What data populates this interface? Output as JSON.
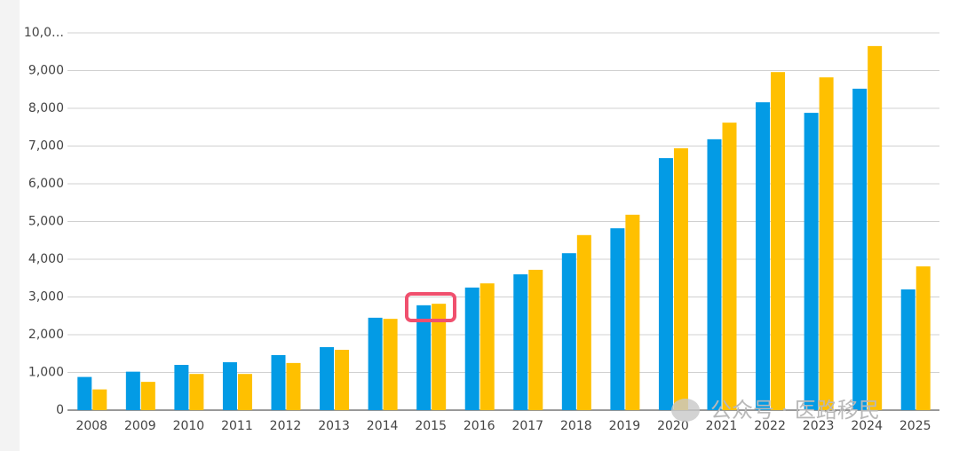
{
  "chart_data": {
    "type": "bar",
    "categories": [
      "2008",
      "2009",
      "2010",
      "2011",
      "2012",
      "2013",
      "2014",
      "2015",
      "2016",
      "2017",
      "2018",
      "2019",
      "2020",
      "2021",
      "2022",
      "2023",
      "2024",
      "2025"
    ],
    "series": [
      {
        "color": "#039be5",
        "values": [
          880,
          1020,
          1200,
          1270,
          1460,
          1670,
          2450,
          2780,
          3250,
          3600,
          4160,
          4820,
          6680,
          7180,
          8160,
          7880,
          8520,
          3200
        ]
      },
      {
        "color": "#ffc000",
        "values": [
          550,
          750,
          960,
          960,
          1250,
          1600,
          2420,
          2820,
          3360,
          3720,
          4640,
          5180,
          6940,
          7620,
          8960,
          8820,
          9650,
          3810
        ]
      }
    ],
    "ylim": [
      0,
      10000
    ],
    "yticks": [
      0,
      {
        "value": 1000,
        "label": "1,000"
      },
      {
        "value": 2000,
        "label": "2,000"
      },
      {
        "value": 3000,
        "label": "3,000"
      },
      {
        "value": 4000,
        "label": "4,000"
      },
      {
        "value": 5000,
        "label": "5,000"
      },
      {
        "value": 6000,
        "label": "6,000"
      },
      {
        "value": 7000,
        "label": "7,000"
      },
      {
        "value": 8000,
        "label": "8,000"
      },
      {
        "value": 9000,
        "label": "9,000"
      },
      {
        "value": 10000,
        "label": "10,0…"
      }
    ],
    "grid": true,
    "watermark": "公众号 · 医路移民"
  }
}
